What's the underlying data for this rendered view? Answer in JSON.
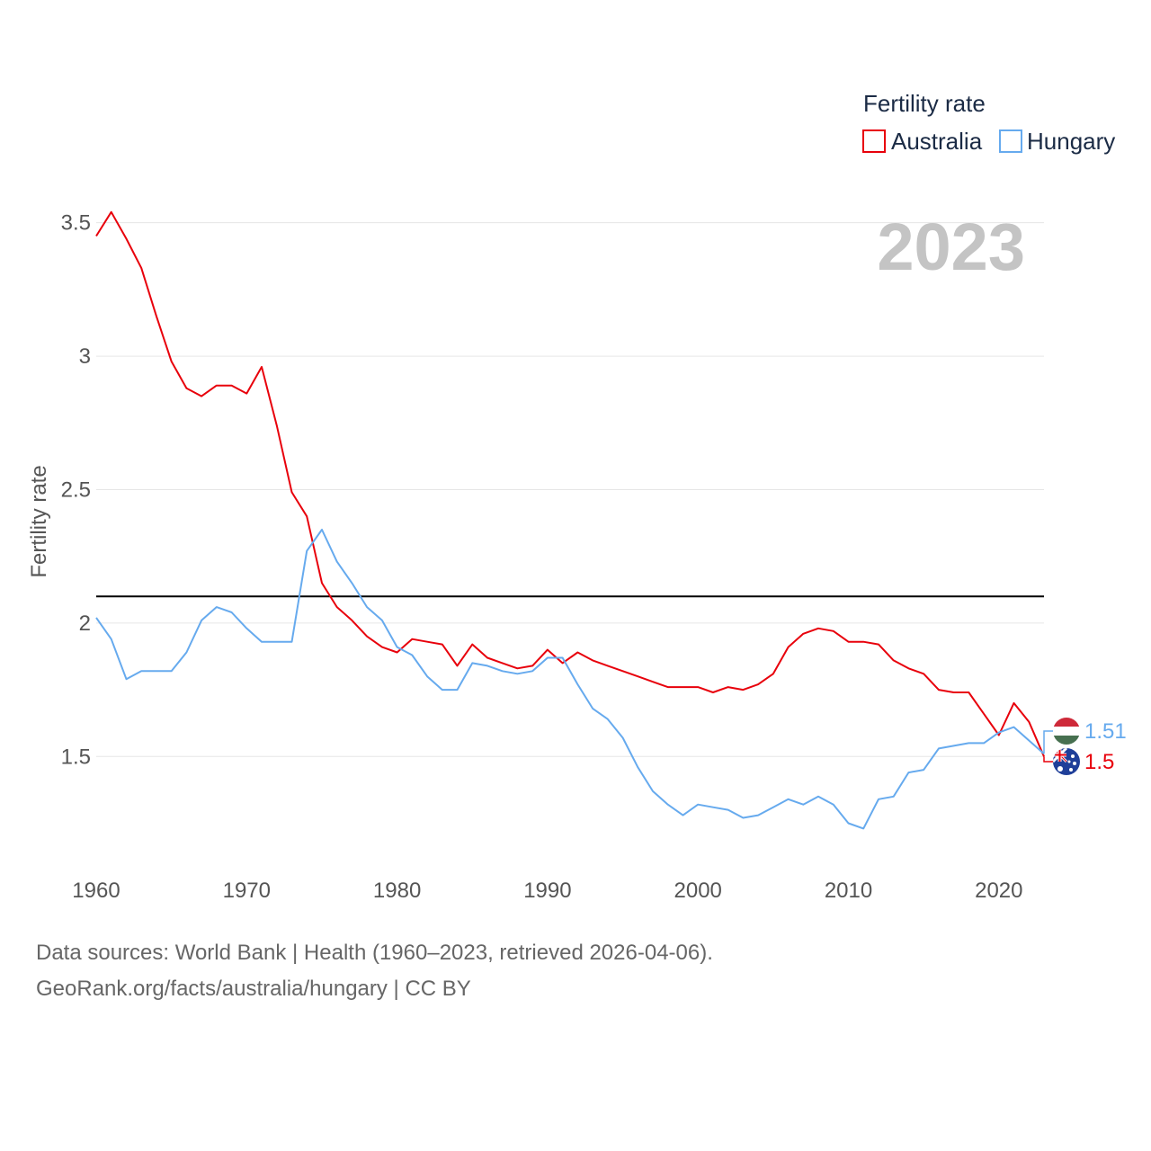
{
  "chart_data": {
    "type": "line",
    "title": "Fertility rate",
    "ylabel": "Fertility rate",
    "xlabel": "",
    "year_display": "2023",
    "xlim": [
      1960,
      2023
    ],
    "ylim": [
      1.1,
      3.6
    ],
    "x_ticks": [
      1960,
      1970,
      1980,
      1990,
      2000,
      2010,
      2020
    ],
    "x_tick_labels": [
      "1960",
      "1970",
      "1980",
      "1990",
      "2000",
      "2010",
      "2020"
    ],
    "y_ticks": [
      1.5,
      2,
      2.5,
      3,
      3.5
    ],
    "y_tick_labels": [
      "1.5",
      "2",
      "2.5",
      "3",
      "3.5"
    ],
    "grid": true,
    "reference_line": {
      "value": 2.1,
      "color": "#000000"
    },
    "legend": {
      "title": "Fertility rate",
      "position": "top-right"
    },
    "x": [
      1960,
      1961,
      1962,
      1963,
      1964,
      1965,
      1966,
      1967,
      1968,
      1969,
      1970,
      1971,
      1972,
      1973,
      1974,
      1975,
      1976,
      1977,
      1978,
      1979,
      1980,
      1981,
      1982,
      1983,
      1984,
      1985,
      1986,
      1987,
      1988,
      1989,
      1990,
      1991,
      1992,
      1993,
      1994,
      1995,
      1996,
      1997,
      1998,
      1999,
      2000,
      2001,
      2002,
      2003,
      2004,
      2005,
      2006,
      2007,
      2008,
      2009,
      2010,
      2011,
      2012,
      2013,
      2014,
      2015,
      2016,
      2017,
      2018,
      2019,
      2020,
      2021,
      2022,
      2023
    ],
    "series": [
      {
        "name": "Australia",
        "color": "#e8000b",
        "end_label": "1.5",
        "values": [
          3.45,
          3.54,
          3.44,
          3.33,
          3.15,
          2.98,
          2.88,
          2.85,
          2.89,
          2.89,
          2.86,
          2.96,
          2.74,
          2.49,
          2.4,
          2.15,
          2.06,
          2.01,
          1.95,
          1.91,
          1.89,
          1.94,
          1.93,
          1.92,
          1.84,
          1.92,
          1.87,
          1.85,
          1.83,
          1.84,
          1.9,
          1.85,
          1.89,
          1.86,
          1.84,
          1.82,
          1.8,
          1.78,
          1.76,
          1.76,
          1.76,
          1.74,
          1.76,
          1.75,
          1.77,
          1.81,
          1.91,
          1.96,
          1.98,
          1.97,
          1.93,
          1.93,
          1.92,
          1.86,
          1.83,
          1.81,
          1.75,
          1.74,
          1.74,
          1.66,
          1.58,
          1.7,
          1.63,
          1.5
        ]
      },
      {
        "name": "Hungary",
        "color": "#66aaee",
        "end_label": "1.51",
        "values": [
          2.02,
          1.94,
          1.79,
          1.82,
          1.82,
          1.82,
          1.89,
          2.01,
          2.06,
          2.04,
          1.98,
          1.93,
          1.93,
          1.93,
          2.27,
          2.35,
          2.23,
          2.15,
          2.06,
          2.01,
          1.91,
          1.88,
          1.8,
          1.75,
          1.75,
          1.85,
          1.84,
          1.82,
          1.81,
          1.82,
          1.87,
          1.87,
          1.77,
          1.68,
          1.64,
          1.57,
          1.46,
          1.37,
          1.32,
          1.28,
          1.32,
          1.31,
          1.3,
          1.27,
          1.28,
          1.31,
          1.34,
          1.32,
          1.35,
          1.32,
          1.25,
          1.23,
          1.34,
          1.35,
          1.44,
          1.45,
          1.53,
          1.54,
          1.55,
          1.55,
          1.59,
          1.61,
          1.56,
          1.51
        ]
      }
    ]
  },
  "footer": {
    "line1": "Data sources: World Bank | Health (1960–2023, retrieved 2026-04-06).",
    "line2": "GeoRank.org/facts/australia/hungary | CC BY"
  }
}
